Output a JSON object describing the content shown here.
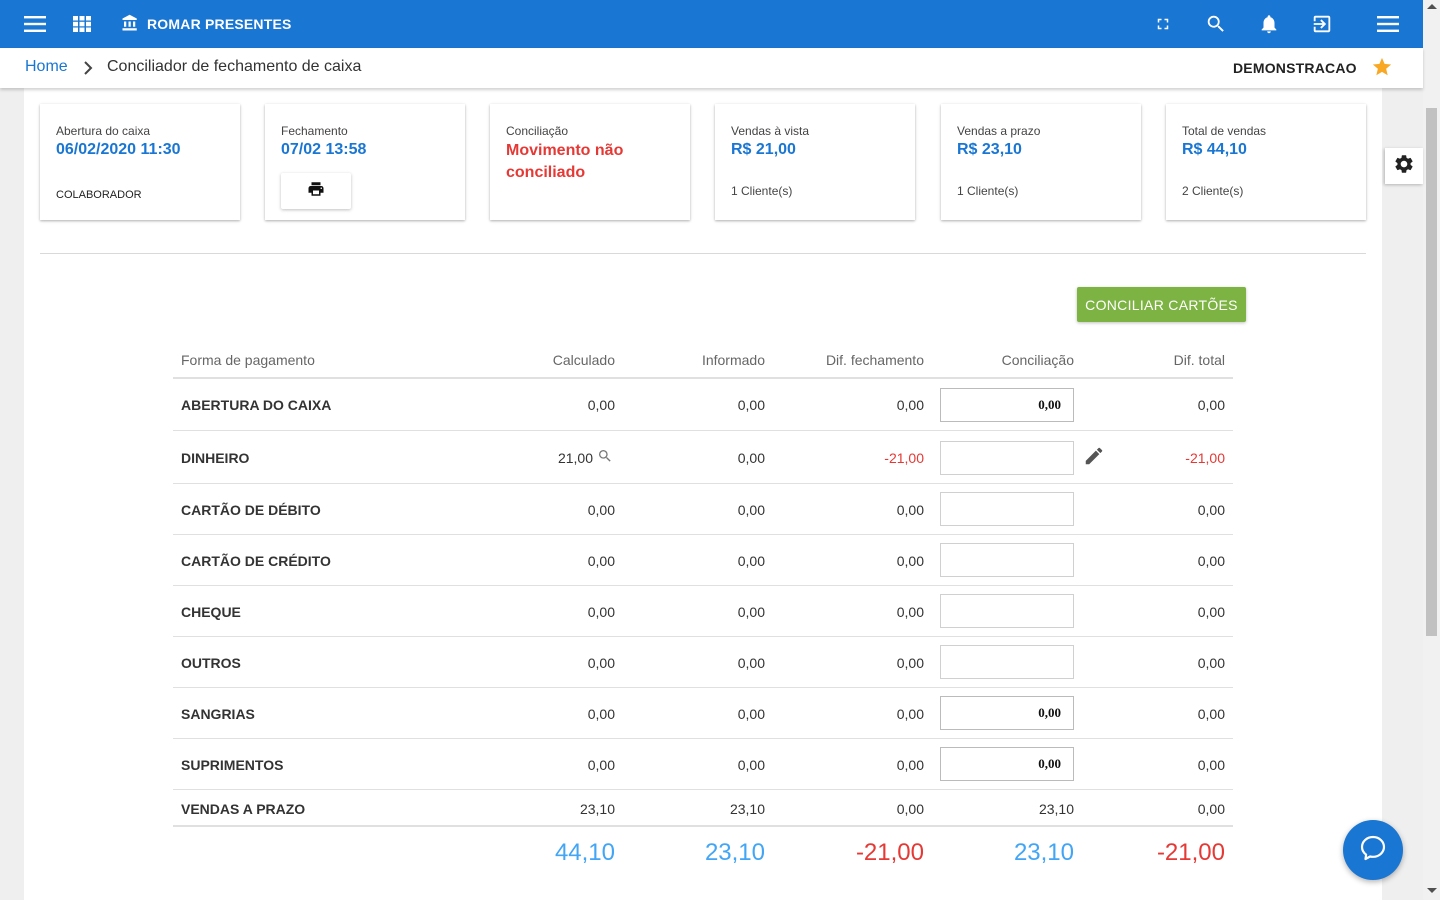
{
  "header": {
    "brand": "ROMAR PRESENTES",
    "icons": [
      "menu-icon",
      "apps-icon",
      "bank-icon",
      "fullscreen-icon",
      "search-icon",
      "bell-icon",
      "logout-icon",
      "menu-icon"
    ]
  },
  "breadcrumb": {
    "home": "Home",
    "current": "Conciliador de fechamento de caixa",
    "user": "DEMONSTRACAO"
  },
  "cards": {
    "abertura": {
      "label": "Abertura do caixa",
      "value": "06/02/2020 11:30",
      "sub": "COLABORADOR"
    },
    "fechamento": {
      "label": "Fechamento",
      "value": "07/02 13:58"
    },
    "conciliacao": {
      "label": "Conciliação",
      "value": "Movimento não conciliado"
    },
    "vista": {
      "label": "Vendas à vista",
      "value": "R$ 21,00",
      "sub": "1 Cliente(s)"
    },
    "prazo": {
      "label": "Vendas a prazo",
      "value": "R$ 23,10",
      "sub": "1 Cliente(s)"
    },
    "total": {
      "label": "Total de vendas",
      "value": "R$ 44,10",
      "sub": "2 Cliente(s)"
    }
  },
  "actions": {
    "conciliar": "CONCILIAR CARTÕES"
  },
  "table": {
    "headers": {
      "forma": "Forma de pagamento",
      "calculado": "Calculado",
      "informado": "Informado",
      "dif_fechamento": "Dif. fechamento",
      "conciliacao": "Conciliação",
      "dif_total": "Dif. total"
    },
    "rows": [
      {
        "name": "ABERTURA DO CAIXA",
        "calculado": "0,00",
        "informado": "0,00",
        "dif_fechamento": "0,00",
        "conciliacao": "0,00",
        "dif_total": "0,00"
      },
      {
        "name": "DINHEIRO",
        "calculado": "21,00",
        "informado": "0,00",
        "dif_fechamento": "-21,00",
        "conciliacao": "",
        "dif_total": "-21,00"
      },
      {
        "name": "CARTÃO DE DÉBITO",
        "calculado": "0,00",
        "informado": "0,00",
        "dif_fechamento": "0,00",
        "conciliacao": "",
        "dif_total": "0,00"
      },
      {
        "name": "CARTÃO DE CRÉDITO",
        "calculado": "0,00",
        "informado": "0,00",
        "dif_fechamento": "0,00",
        "conciliacao": "",
        "dif_total": "0,00"
      },
      {
        "name": "CHEQUE",
        "calculado": "0,00",
        "informado": "0,00",
        "dif_fechamento": "0,00",
        "conciliacao": "",
        "dif_total": "0,00"
      },
      {
        "name": "OUTROS",
        "calculado": "0,00",
        "informado": "0,00",
        "dif_fechamento": "0,00",
        "conciliacao": "",
        "dif_total": "0,00"
      },
      {
        "name": "SANGRIAS",
        "calculado": "0,00",
        "informado": "0,00",
        "dif_fechamento": "0,00",
        "conciliacao": "0,00",
        "dif_total": "0,00"
      },
      {
        "name": "SUPRIMENTOS",
        "calculado": "0,00",
        "informado": "0,00",
        "dif_fechamento": "0,00",
        "conciliacao": "0,00",
        "dif_total": "0,00"
      },
      {
        "name": "VENDAS A PRAZO",
        "calculado": "23,10",
        "informado": "23,10",
        "dif_fechamento": "0,00",
        "conciliacao": "23,10",
        "dif_total": "0,00"
      }
    ],
    "totals": {
      "calculado": "44,10",
      "informado": "23,10",
      "dif_fechamento": "-21,00",
      "conciliacao": "23,10",
      "dif_total": "-21,00"
    }
  },
  "colors": {
    "primary": "#1976d2",
    "success": "#7cb342",
    "danger": "#e53935",
    "totals_blue": "#42a5f5",
    "star": "#f9a825"
  }
}
